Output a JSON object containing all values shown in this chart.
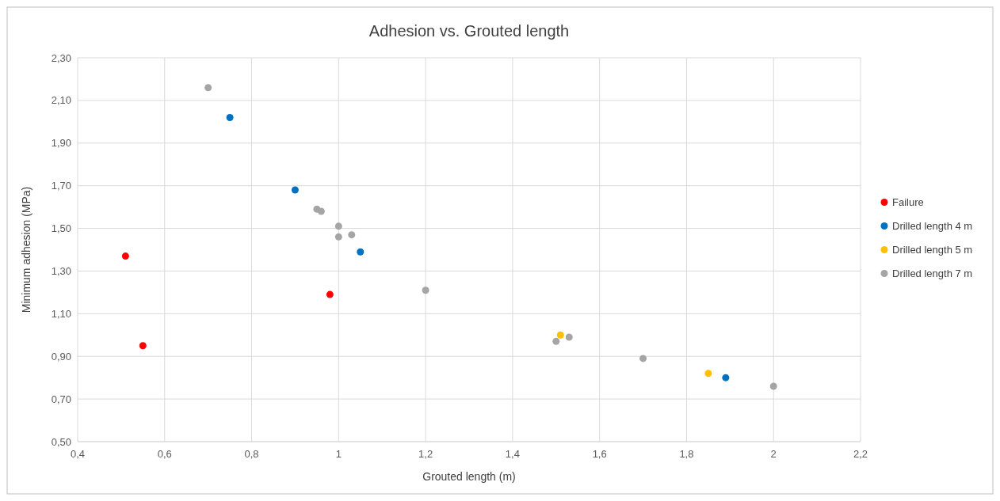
{
  "chart_data": {
    "type": "scatter",
    "title": "Adhesion vs. Grouted length",
    "xlabel": "Grouted length (m)",
    "ylabel": "Minimum adhesion (MPa)",
    "xlim": [
      0.4,
      2.2
    ],
    "ylim": [
      0.5,
      2.3
    ],
    "xticks": [
      {
        "value": 0.4,
        "label": "0,4"
      },
      {
        "value": 0.6,
        "label": "0,6"
      },
      {
        "value": 0.8,
        "label": "0,8"
      },
      1,
      {
        "value": 1.2,
        "label": "1,2"
      },
      {
        "value": 1.4,
        "label": "1,4"
      },
      {
        "value": 1.6,
        "label": "1,6"
      },
      {
        "value": 1.8,
        "label": "1,8"
      },
      2,
      {
        "value": 2.2,
        "label": "2,2"
      }
    ],
    "yticks": [
      {
        "value": 0.5,
        "label": "0,50"
      },
      {
        "value": 0.7,
        "label": "0,70"
      },
      {
        "value": 0.9,
        "label": "0,90"
      },
      {
        "value": 1.1,
        "label": "1,10"
      },
      {
        "value": 1.3,
        "label": "1,30"
      },
      {
        "value": 1.5,
        "label": "1,50"
      },
      {
        "value": 1.7,
        "label": "1,70"
      },
      {
        "value": 1.9,
        "label": "1,90"
      },
      {
        "value": 2.1,
        "label": "2,10"
      },
      {
        "value": 2.3,
        "label": "2,30"
      }
    ],
    "grid": true,
    "legend": "right",
    "marker": "circle",
    "series": [
      {
        "name": "Failure",
        "color": "#ff0000",
        "x": [
          0.51,
          0.55,
          0.98
        ],
        "values": [
          1.37,
          0.95,
          1.19
        ]
      },
      {
        "name": "Drilled length 4 m",
        "color": "#0070c0",
        "x": [
          0.75,
          0.9,
          1.05,
          1.89
        ],
        "values": [
          2.02,
          1.68,
          1.39,
          0.8
        ]
      },
      {
        "name": "Drilled length 5 m",
        "color": "#ffc000",
        "x": [
          1.51,
          1.85
        ],
        "values": [
          1.0,
          0.82
        ]
      },
      {
        "name": "Drilled length 7 m",
        "color": "#a5a5a5",
        "x": [
          0.7,
          0.95,
          0.96,
          1.0,
          1.0,
          1.03,
          1.2,
          1.5,
          1.53,
          1.7,
          2.0
        ],
        "values": [
          2.16,
          1.59,
          1.58,
          1.51,
          1.46,
          1.47,
          1.21,
          0.97,
          0.99,
          0.89,
          0.76
        ]
      }
    ]
  }
}
